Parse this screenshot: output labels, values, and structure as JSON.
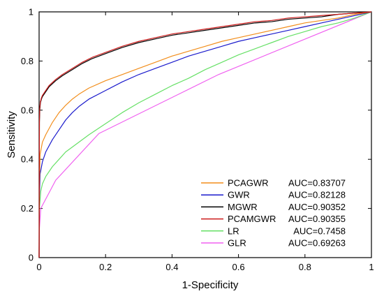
{
  "chart_data": {
    "type": "line",
    "title": "",
    "xlabel": "1-Specificity",
    "ylabel": "Sensitivity",
    "xlim": [
      0,
      1
    ],
    "ylim": [
      0,
      1
    ],
    "xticks": [
      "0",
      "0.2",
      "0.4",
      "0.6",
      "0.8",
      "1"
    ],
    "yticks": [
      "0",
      "0.2",
      "0.4",
      "0.6",
      "0.8",
      "1"
    ],
    "grid": false,
    "legend_position": "bottom-right",
    "series": [
      {
        "name": "PCAGWR",
        "auc": "AUC=0.83707",
        "color": "#f28e1c",
        "x": [
          0,
          0.001,
          0.003,
          0.01,
          0.02,
          0.04,
          0.06,
          0.08,
          0.1,
          0.12,
          0.15,
          0.2,
          0.25,
          0.3,
          0.35,
          0.4,
          0.45,
          0.5,
          0.55,
          0.6,
          0.65,
          0.7,
          0.75,
          0.8,
          0.85,
          0.9,
          0.95,
          1.0
        ],
        "y": [
          0,
          0.3,
          0.42,
          0.47,
          0.5,
          0.55,
          0.59,
          0.62,
          0.645,
          0.665,
          0.69,
          0.72,
          0.745,
          0.77,
          0.795,
          0.82,
          0.84,
          0.86,
          0.88,
          0.895,
          0.91,
          0.925,
          0.94,
          0.955,
          0.965,
          0.975,
          0.99,
          1.0
        ]
      },
      {
        "name": "GWR",
        "auc": "AUC=0.82128",
        "color": "#1a1acc",
        "x": [
          0,
          0.001,
          0.003,
          0.01,
          0.02,
          0.04,
          0.06,
          0.08,
          0.1,
          0.12,
          0.15,
          0.2,
          0.25,
          0.3,
          0.35,
          0.4,
          0.45,
          0.5,
          0.55,
          0.6,
          0.65,
          0.7,
          0.75,
          0.8,
          0.85,
          0.9,
          0.95,
          1.0
        ],
        "y": [
          0,
          0.25,
          0.34,
          0.39,
          0.43,
          0.48,
          0.52,
          0.56,
          0.59,
          0.615,
          0.645,
          0.68,
          0.715,
          0.745,
          0.77,
          0.795,
          0.82,
          0.84,
          0.86,
          0.88,
          0.895,
          0.91,
          0.925,
          0.94,
          0.955,
          0.97,
          0.985,
          1.0
        ]
      },
      {
        "name": "MGWR",
        "auc": "AUC=0.90352",
        "color": "#000000",
        "x": [
          0,
          0.001,
          0.002,
          0.004,
          0.007,
          0.01,
          0.02,
          0.03,
          0.05,
          0.07,
          0.1,
          0.13,
          0.16,
          0.2,
          0.25,
          0.3,
          0.35,
          0.4,
          0.45,
          0.5,
          0.55,
          0.6,
          0.65,
          0.7,
          0.75,
          0.8,
          0.85,
          0.9,
          0.95,
          1.0
        ],
        "y": [
          0,
          0.55,
          0.6,
          0.63,
          0.645,
          0.655,
          0.675,
          0.695,
          0.72,
          0.74,
          0.765,
          0.79,
          0.81,
          0.83,
          0.855,
          0.875,
          0.89,
          0.905,
          0.915,
          0.925,
          0.935,
          0.945,
          0.955,
          0.96,
          0.97,
          0.975,
          0.98,
          0.99,
          0.995,
          1.0
        ]
      },
      {
        "name": "PCAMGWR",
        "auc": "AUC=0.90355",
        "color": "#cc1a1a",
        "x": [
          0,
          0.001,
          0.002,
          0.004,
          0.007,
          0.01,
          0.02,
          0.03,
          0.05,
          0.07,
          0.1,
          0.13,
          0.16,
          0.2,
          0.25,
          0.3,
          0.35,
          0.4,
          0.45,
          0.5,
          0.55,
          0.6,
          0.65,
          0.7,
          0.75,
          0.8,
          0.85,
          0.9,
          0.95,
          1.0
        ],
        "y": [
          0,
          0.56,
          0.61,
          0.635,
          0.65,
          0.66,
          0.68,
          0.7,
          0.725,
          0.745,
          0.77,
          0.795,
          0.815,
          0.835,
          0.86,
          0.88,
          0.895,
          0.91,
          0.92,
          0.93,
          0.94,
          0.95,
          0.96,
          0.965,
          0.975,
          0.98,
          0.985,
          0.99,
          0.995,
          1.0
        ]
      },
      {
        "name": "LR",
        "auc": "AUC=0.7458",
        "color": "#66e066",
        "x": [
          0,
          0.001,
          0.005,
          0.01,
          0.02,
          0.04,
          0.06,
          0.08,
          0.1,
          0.15,
          0.2,
          0.25,
          0.3,
          0.35,
          0.4,
          0.45,
          0.5,
          0.55,
          0.6,
          0.65,
          0.7,
          0.75,
          0.8,
          0.85,
          0.9,
          0.95,
          1.0
        ],
        "y": [
          0,
          0.2,
          0.27,
          0.3,
          0.33,
          0.37,
          0.4,
          0.43,
          0.45,
          0.5,
          0.545,
          0.59,
          0.63,
          0.665,
          0.7,
          0.73,
          0.765,
          0.795,
          0.825,
          0.85,
          0.875,
          0.9,
          0.92,
          0.94,
          0.955,
          0.975,
          1.0
        ]
      },
      {
        "name": "GLR",
        "auc": "AUC=0.69263",
        "color": "#f060f0",
        "x": [
          0,
          0.001,
          0.005,
          0.05,
          0.18,
          0.54,
          1.0
        ],
        "y": [
          0,
          0.12,
          0.2,
          0.315,
          0.505,
          0.745,
          1.0
        ]
      }
    ]
  }
}
